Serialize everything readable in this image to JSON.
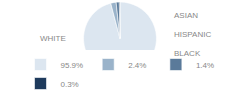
{
  "chart_data": {
    "type": "pie",
    "categories": [
      "WHITE",
      "ASIAN",
      "HISPANIC",
      "BLACK"
    ],
    "values": [
      95.9,
      2.4,
      1.4,
      0.3
    ],
    "value_labels": [
      "95.9%",
      "2.4%",
      "1.4%",
      "0.3%"
    ],
    "colors": [
      "#dce6f0",
      "#9ab3ca",
      "#5a7a9a",
      "#1e3a5c"
    ],
    "legend": "bottom"
  }
}
